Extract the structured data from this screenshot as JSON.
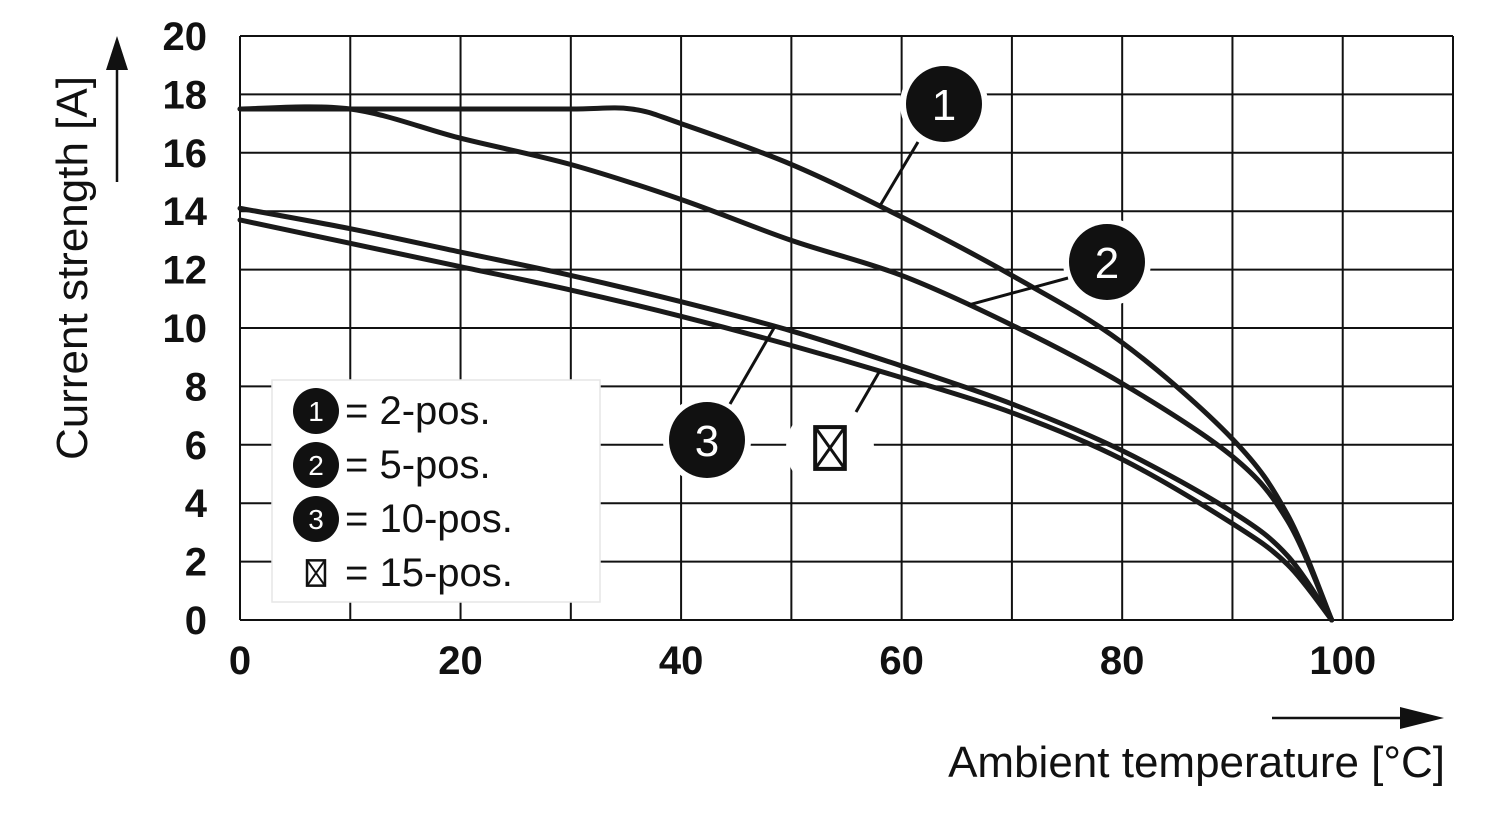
{
  "chart_data": {
    "type": "line",
    "xlabel": "Ambient temperature [°C]",
    "ylabel": "Current strength [A]",
    "xlim": [
      0,
      110
    ],
    "ylim": [
      0,
      20
    ],
    "x_ticks": [
      0,
      20,
      40,
      60,
      80,
      100
    ],
    "y_ticks": [
      0,
      2,
      4,
      6,
      8,
      10,
      12,
      14,
      16,
      18,
      20
    ],
    "grid": true,
    "legend_position": "lower-left",
    "series": [
      {
        "marker": "1",
        "x": [
          0,
          10,
          20,
          30,
          35.5,
          40,
          50,
          60,
          70,
          80,
          90,
          95,
          99
        ],
        "values": [
          17.5,
          17.5,
          17.5,
          17.5,
          17.5,
          17.0,
          15.6,
          13.8,
          11.8,
          9.5,
          6.2,
          3.6,
          0
        ]
      },
      {
        "marker": "2",
        "x": [
          0,
          10,
          20,
          30,
          40,
          50,
          60,
          70,
          80,
          90,
          95,
          99
        ],
        "values": [
          17.5,
          17.5,
          16.5,
          15.6,
          14.4,
          13.0,
          11.8,
          10.1,
          8.1,
          5.6,
          3.4,
          0
        ]
      },
      {
        "marker": "3",
        "x": [
          0,
          10,
          20,
          30,
          40,
          50,
          60,
          70,
          80,
          90,
          95,
          99
        ],
        "values": [
          14.1,
          13.4,
          12.6,
          11.8,
          10.9,
          9.9,
          8.7,
          7.4,
          5.8,
          3.7,
          2.2,
          0
        ]
      },
      {
        "marker": "⊠",
        "x": [
          0,
          10,
          20,
          30,
          40,
          50,
          60,
          70,
          80,
          90,
          95,
          99
        ],
        "values": [
          13.7,
          12.9,
          12.1,
          11.3,
          10.4,
          9.4,
          8.3,
          7.1,
          5.5,
          3.3,
          1.9,
          0
        ]
      }
    ],
    "legend": [
      {
        "marker": "1",
        "label": "= 2-pos."
      },
      {
        "marker": "2",
        "label": "= 5-pos."
      },
      {
        "marker": "3",
        "label": "= 10-pos."
      },
      {
        "marker": "⊠",
        "label": "= 15-pos."
      }
    ]
  }
}
